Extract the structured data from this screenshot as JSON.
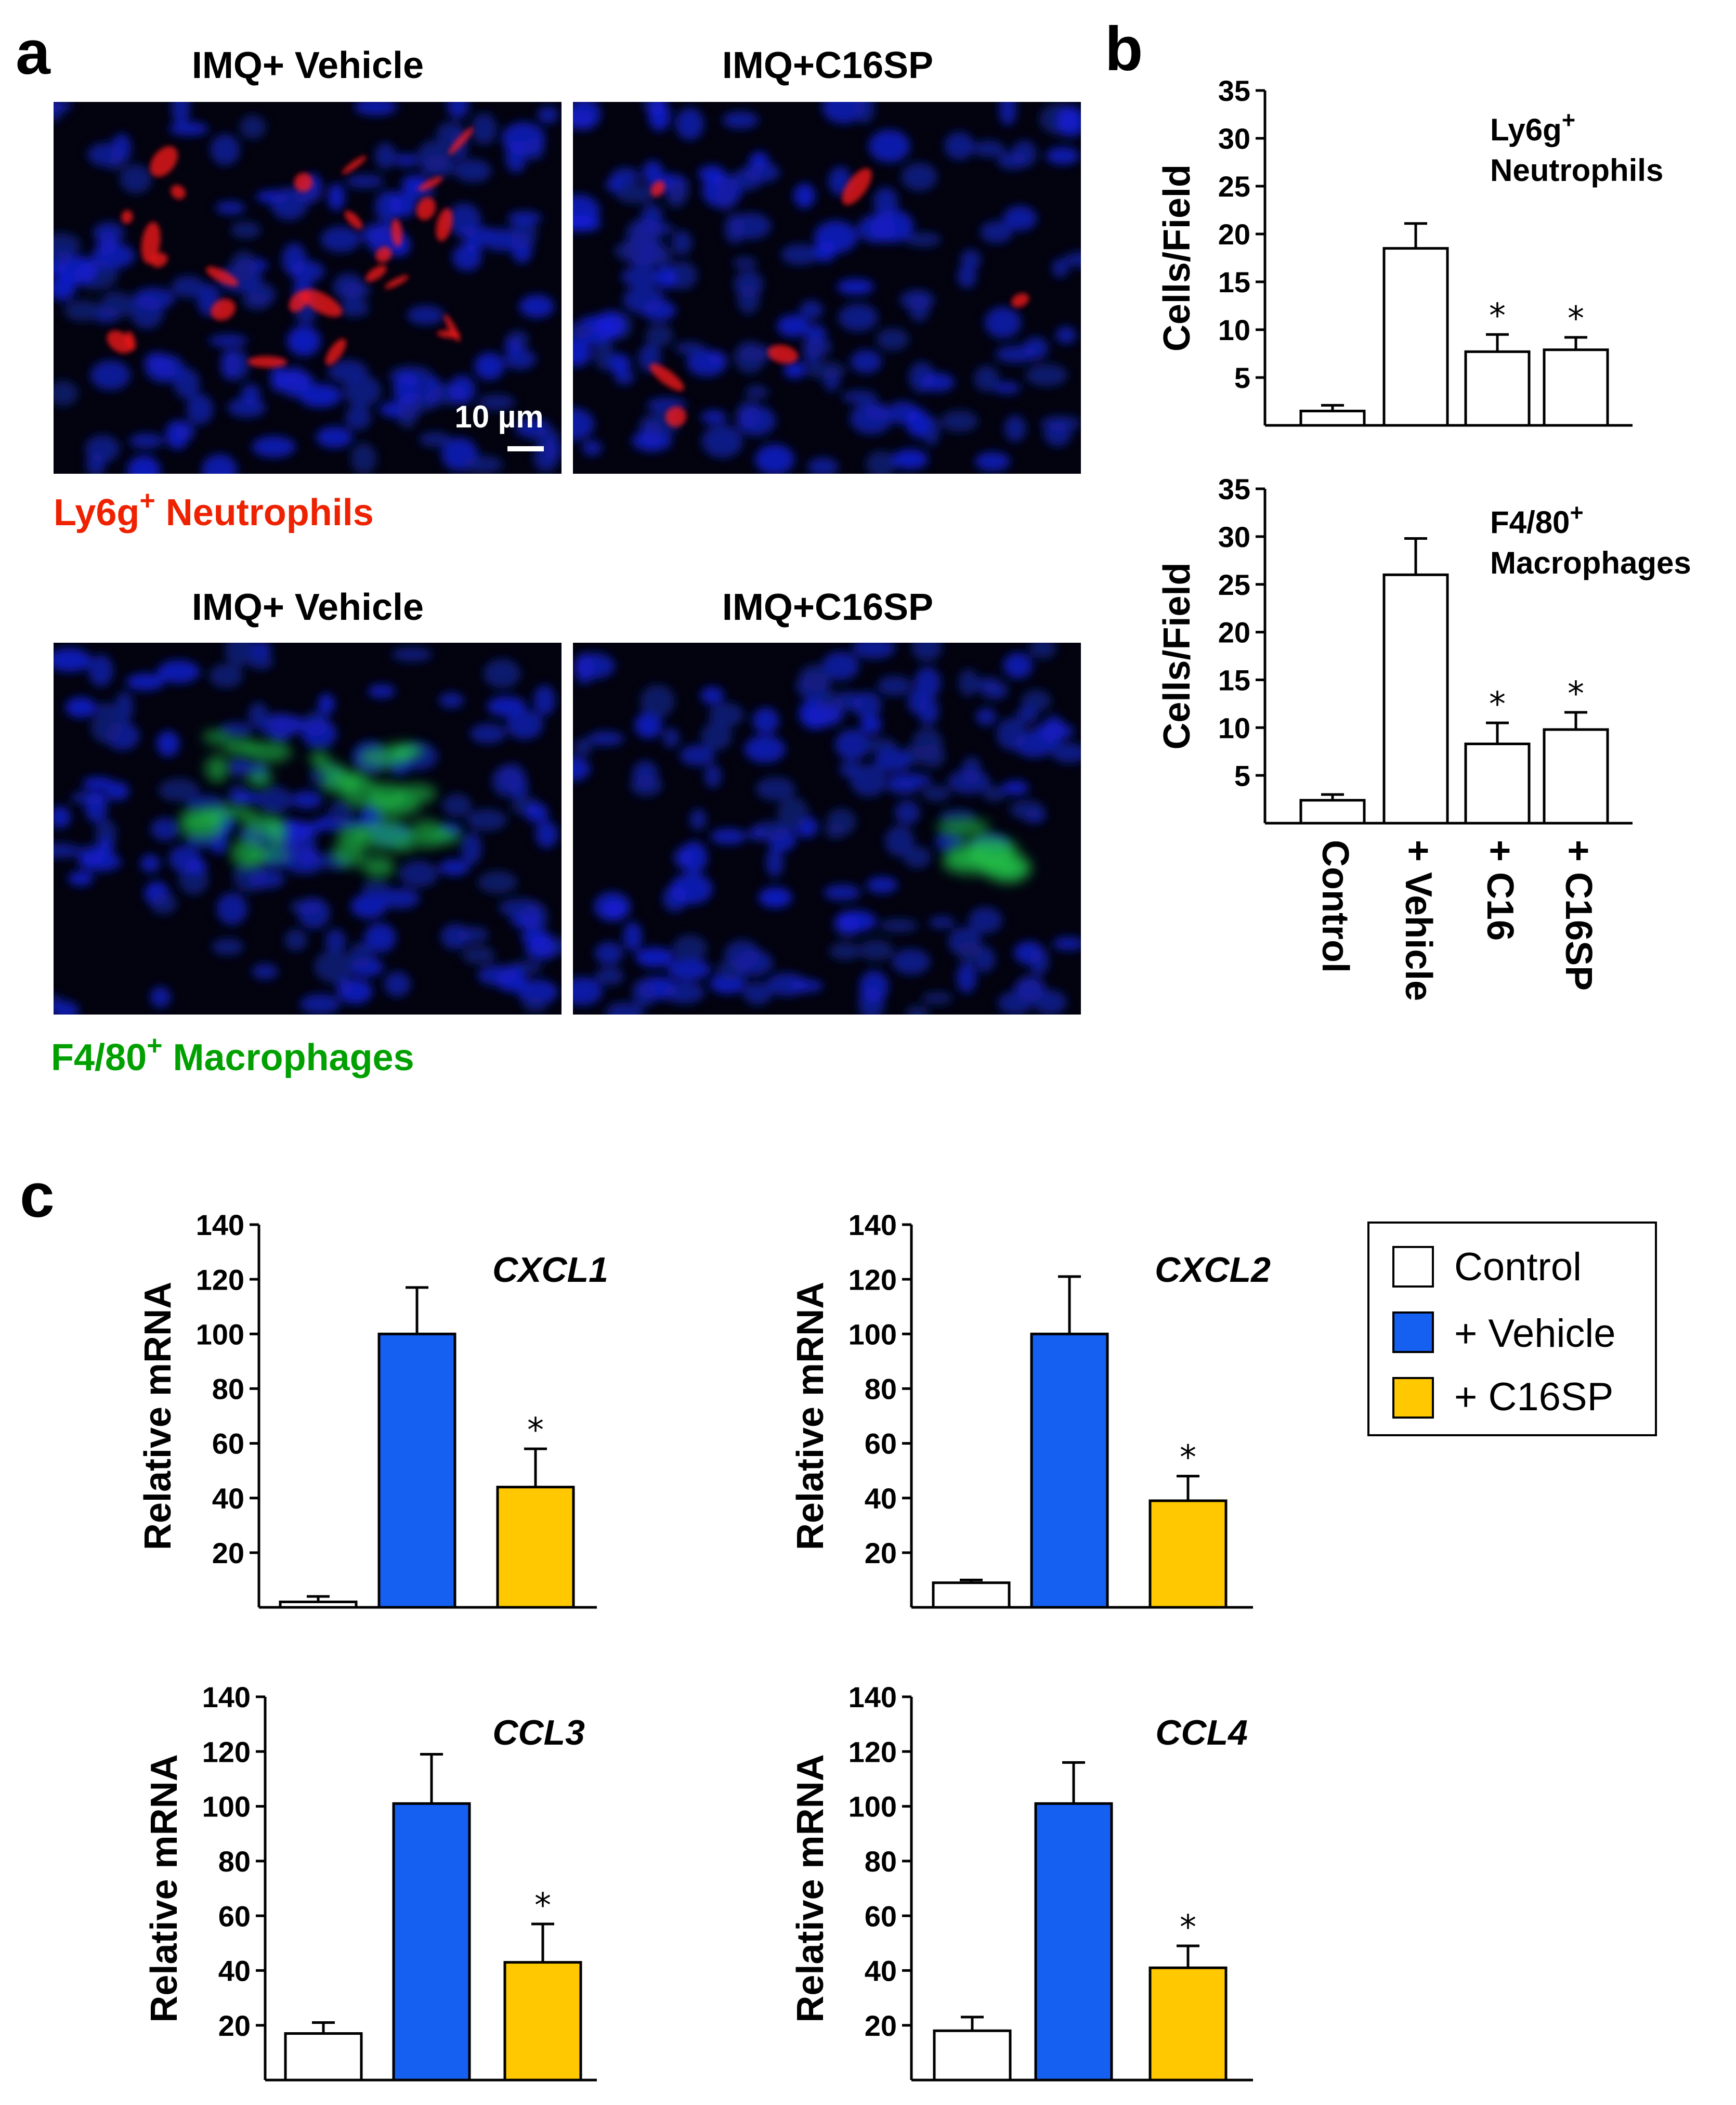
{
  "panel_letters": {
    "a": "a",
    "b": "b",
    "c": "c"
  },
  "panel_a": {
    "columns": [
      "IMQ+ Vehicle",
      "IMQ+C16SP"
    ],
    "rows": [
      {
        "label_main": "Ly6g",
        "label_sup": "+",
        "label_rest": " Neutrophils",
        "color": "#ee2200"
      },
      {
        "label_main": "F4/80",
        "label_sup": "+",
        "label_rest": " Macrophages",
        "color": "#00a000"
      }
    ],
    "scale_bar": "10 µm"
  },
  "chart_data": [
    {
      "type": "bar",
      "panel": "b",
      "title_main": "Ly6g",
      "title_sup": "+",
      "title_line2": "Neutrophils",
      "ylabel": "Cells/Field",
      "ylim": [
        0,
        35
      ],
      "yticks": [
        5,
        10,
        15,
        20,
        25,
        30,
        35
      ],
      "categories": [
        "Control",
        "+ Vehicle",
        "+ C16",
        "+ C16SP"
      ],
      "values": [
        1.5,
        18.5,
        7.7,
        7.9
      ],
      "errors": [
        0.6,
        2.6,
        1.8,
        1.3
      ],
      "significance": [
        "",
        "",
        "*",
        "*"
      ]
    },
    {
      "type": "bar",
      "panel": "b",
      "title_main": "F4/80",
      "title_sup": "+",
      "title_line2": "Macrophages",
      "ylabel": "Cells/Field",
      "ylim": [
        0,
        35
      ],
      "yticks": [
        5,
        10,
        15,
        20,
        25,
        30,
        35
      ],
      "categories": [
        "Control",
        "+ Vehicle",
        "+ C16",
        "+ C16SP"
      ],
      "values": [
        2.4,
        26,
        8.3,
        9.8
      ],
      "errors": [
        0.6,
        3.8,
        2.2,
        1.8
      ],
      "significance": [
        "",
        "",
        "*",
        "*"
      ]
    },
    {
      "type": "bar",
      "panel": "c",
      "title": "CXCL1",
      "ylabel": "Relative mRNA",
      "ylim": [
        0,
        140
      ],
      "yticks": [
        20,
        40,
        60,
        80,
        100,
        120,
        140
      ],
      "categories": [
        "Control",
        "+ Vehicle",
        "+ C16SP"
      ],
      "values": [
        2,
        100,
        44
      ],
      "errors": [
        2,
        17,
        14
      ],
      "significance": [
        "",
        "",
        "*"
      ]
    },
    {
      "type": "bar",
      "panel": "c",
      "title": "CXCL2",
      "ylabel": "Relative mRNA",
      "ylim": [
        0,
        140
      ],
      "yticks": [
        20,
        40,
        60,
        80,
        100,
        120,
        140
      ],
      "categories": [
        "Control",
        "+ Vehicle",
        "+ C16SP"
      ],
      "values": [
        9,
        100,
        39
      ],
      "errors": [
        1,
        21,
        9
      ],
      "significance": [
        "",
        "",
        "*"
      ]
    },
    {
      "type": "bar",
      "panel": "c",
      "title": "CCL3",
      "ylabel": "Relative mRNA",
      "ylim": [
        0,
        140
      ],
      "yticks": [
        20,
        40,
        60,
        80,
        100,
        120,
        140
      ],
      "categories": [
        "Control",
        "+ Vehicle",
        "+ C16SP"
      ],
      "values": [
        17,
        101,
        43
      ],
      "errors": [
        4,
        18,
        14
      ],
      "significance": [
        "",
        "",
        "*"
      ]
    },
    {
      "type": "bar",
      "panel": "c",
      "title": "CCL4",
      "ylabel": "Relative mRNA",
      "ylim": [
        0,
        140
      ],
      "yticks": [
        20,
        40,
        60,
        80,
        100,
        120,
        140
      ],
      "categories": [
        "Control",
        "+ Vehicle",
        "+ C16SP"
      ],
      "values": [
        18,
        101,
        41
      ],
      "errors": [
        5,
        15,
        8
      ],
      "significance": [
        "",
        "",
        "*"
      ]
    }
  ],
  "legend": {
    "entries": [
      {
        "label": "Control",
        "color": "#ffffff"
      },
      {
        "label": "+ Vehicle",
        "color": "#1560f0"
      },
      {
        "label": "+ C16SP",
        "color": "#ffc800"
      }
    ]
  }
}
